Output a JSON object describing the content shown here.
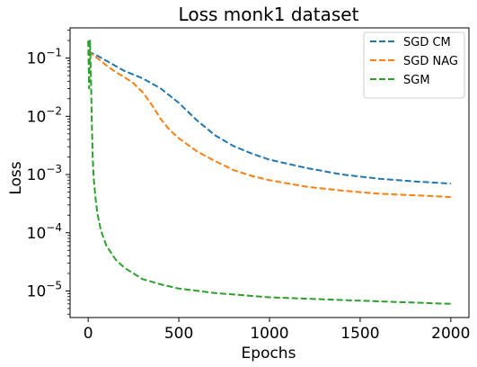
{
  "chart_data": {
    "type": "line",
    "title": "Loss monk1 dataset",
    "xlabel": "Epochs",
    "ylabel": "Loss",
    "xlim": [
      -100,
      2100
    ],
    "ylim": [
      3.5e-06,
      0.33
    ],
    "yscale": "log",
    "grid": false,
    "legend_position": "top-right",
    "x_ticks": [
      {
        "value": 0,
        "label": "0"
      },
      {
        "value": 500,
        "label": "500"
      },
      {
        "value": 1000,
        "label": "1000"
      },
      {
        "value": 1500,
        "label": "1500"
      },
      {
        "value": 2000,
        "label": "2000"
      }
    ],
    "y_ticks": [
      {
        "value": 0.1,
        "base": "10",
        "exp": "−1"
      },
      {
        "value": 0.01,
        "base": "10",
        "exp": "−2"
      },
      {
        "value": 0.001,
        "base": "10",
        "exp": "−3"
      },
      {
        "value": 0.0001,
        "base": "10",
        "exp": "−4"
      },
      {
        "value": 1e-05,
        "base": "10",
        "exp": "−5"
      }
    ],
    "series": [
      {
        "name": "SGD CM",
        "color": "#1f77b4",
        "x": [
          0,
          50,
          100,
          200,
          300,
          400,
          500,
          600,
          700,
          800,
          900,
          1000,
          1200,
          1400,
          1600,
          1800,
          2000
        ],
        "y": [
          0.13,
          0.11,
          0.09,
          0.06,
          0.045,
          0.03,
          0.017,
          0.0085,
          0.0047,
          0.0031,
          0.0023,
          0.0018,
          0.0013,
          0.001,
          0.00085,
          0.00076,
          0.0007
        ]
      },
      {
        "name": "SGD NAG",
        "color": "#ff7f0e",
        "x": [
          0,
          50,
          100,
          150,
          200,
          250,
          300,
          350,
          400,
          450,
          500,
          600,
          700,
          800,
          900,
          1000,
          1200,
          1400,
          1600,
          1800,
          2000
        ],
        "y": [
          0.13,
          0.1,
          0.075,
          0.058,
          0.047,
          0.037,
          0.026,
          0.016,
          0.009,
          0.0058,
          0.0042,
          0.0025,
          0.0017,
          0.0012,
          0.00095,
          0.0008,
          0.00062,
          0.00053,
          0.00047,
          0.00044,
          0.00041
        ]
      },
      {
        "name": "SGM",
        "color": "#2ca02c",
        "x": [
          0,
          5,
          10,
          15,
          20,
          25,
          30,
          40,
          50,
          70,
          100,
          150,
          200,
          300,
          400,
          500,
          700,
          1000,
          1500,
          2000
        ],
        "y": [
          0.2,
          0.03,
          0.2,
          0.05,
          0.008,
          0.002,
          0.0009,
          0.0004,
          0.00022,
          0.00011,
          6e-05,
          3.5e-05,
          2.5e-05,
          1.6e-05,
          1.3e-05,
          1.1e-05,
          9.2e-06,
          7.8e-06,
          6.8e-06,
          6e-06
        ]
      }
    ]
  }
}
